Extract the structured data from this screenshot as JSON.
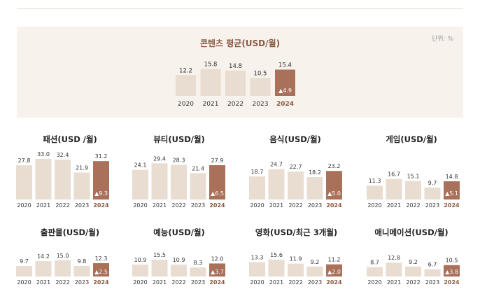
{
  "unit_label": "단위: %",
  "colors": {
    "bar": "#e8ddd0",
    "highlight": "#a9705a",
    "title": "#8a5a43",
    "highlight_text": "#8a5a43",
    "panel": "#f7f2ec"
  },
  "chart_data": [
    {
      "type": "bar",
      "title": "콘텐츠 평균(USD/월)",
      "categories": [
        "2020",
        "2021",
        "2022",
        "2023",
        "2024"
      ],
      "values": [
        12.2,
        15.8,
        14.8,
        10.5,
        15.4
      ],
      "highlight_index": 4,
      "change_label": "▲4.9",
      "ylim": [
        0,
        16
      ]
    },
    {
      "type": "bar",
      "title": "패션(USD /월)",
      "categories": [
        "2020",
        "2021",
        "2022",
        "2023",
        "2024"
      ],
      "values": [
        27.8,
        33.0,
        32.4,
        21.9,
        31.2
      ],
      "highlight_index": 4,
      "change_label": "▲9.3",
      "ylim": [
        0,
        33
      ]
    },
    {
      "type": "bar",
      "title": "뷰티(USD/월)",
      "categories": [
        "2020",
        "2021",
        "2022",
        "2023",
        "2024"
      ],
      "values": [
        24.1,
        29.4,
        28.3,
        21.4,
        27.9
      ],
      "highlight_index": 4,
      "change_label": "▲6.5",
      "ylim": [
        0,
        33
      ]
    },
    {
      "type": "bar",
      "title": "음식(USD/월)",
      "categories": [
        "2020",
        "2021",
        "2022",
        "2023",
        "2024"
      ],
      "values": [
        18.7,
        24.7,
        22.7,
        18.2,
        23.2
      ],
      "highlight_index": 4,
      "change_label": "▲5.0",
      "ylim": [
        0,
        33
      ]
    },
    {
      "type": "bar",
      "title": "게임(USD/월)",
      "categories": [
        "2020",
        "2021",
        "2022",
        "2023",
        "2024"
      ],
      "values": [
        11.3,
        16.7,
        15.1,
        9.7,
        14.8
      ],
      "highlight_index": 4,
      "change_label": "▲5.1",
      "ylim": [
        0,
        33
      ]
    },
    {
      "type": "bar",
      "title": "출판물(USD/월)",
      "categories": [
        "2020",
        "2021",
        "2022",
        "2023",
        "2024"
      ],
      "values": [
        9.7,
        14.2,
        15.0,
        9.8,
        12.3
      ],
      "highlight_index": 4,
      "change_label": "▲2.5",
      "ylim": [
        0,
        15.5
      ]
    },
    {
      "type": "bar",
      "title": "예능(USD/월)",
      "categories": [
        "2020",
        "2021",
        "2022",
        "2023",
        "2024"
      ],
      "values": [
        10.9,
        15.5,
        10.9,
        8.3,
        12.0
      ],
      "highlight_index": 4,
      "change_label": "▲3.7",
      "ylim": [
        0,
        15.5
      ]
    },
    {
      "type": "bar",
      "title": "영화(USD/최근 3개월)",
      "categories": [
        "2020",
        "2021",
        "2022",
        "2023",
        "2024"
      ],
      "values": [
        13.3,
        15.6,
        11.9,
        9.2,
        11.2
      ],
      "highlight_index": 4,
      "change_label": "▲2.0",
      "ylim": [
        0,
        15.5
      ]
    },
    {
      "type": "bar",
      "title": "애니메이션(USD/월)",
      "categories": [
        "2020",
        "2021",
        "2022",
        "2023",
        "2024"
      ],
      "values": [
        8.7,
        12.8,
        9.2,
        6.7,
        10.5
      ],
      "highlight_index": 4,
      "change_label": "▲3.8",
      "ylim": [
        0,
        15.5
      ]
    }
  ]
}
